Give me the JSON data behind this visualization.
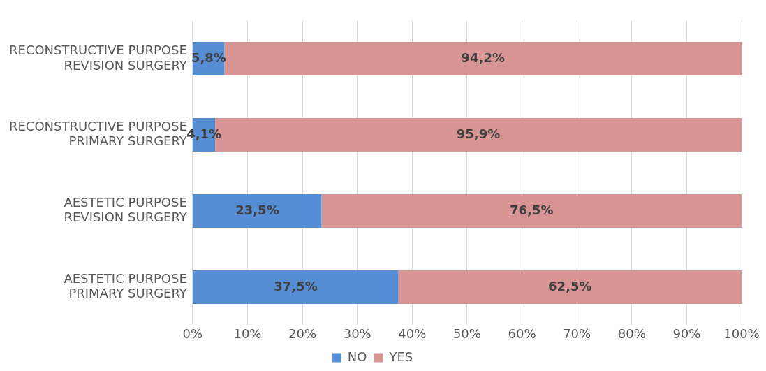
{
  "chart_data": {
    "type": "bar",
    "orientation": "horizontal",
    "stacked": true,
    "categories": [
      "RECONSTRUCTIVE PURPOSE\nREVISION SURGERY",
      "RECONSTRUCTIVE PURPOSE\nPRIMARY SURGERY",
      "AESTETIC PURPOSE\nREVISION SURGERY",
      "AESTETIC PURPOSE\nPRIMARY SURGERY"
    ],
    "series": [
      {
        "name": "NO",
        "color": "#558ed5",
        "values": [
          5.8,
          4.1,
          23.5,
          37.5
        ],
        "value_labels": [
          "5,8%",
          "4,1%",
          "23,5%",
          "37,5%"
        ]
      },
      {
        "name": "YES",
        "color": "#d99594",
        "values": [
          94.2,
          95.9,
          76.5,
          62.5
        ],
        "value_labels": [
          "94,2%",
          "95,9%",
          "76,5%",
          "62,5%"
        ]
      }
    ],
    "xlim": [
      0,
      100
    ],
    "xticks": [
      {
        "value": 0,
        "label": "0%"
      },
      {
        "value": 10,
        "label": "10%"
      },
      {
        "value": 20,
        "label": "20%"
      },
      {
        "value": 30,
        "label": "30%"
      },
      {
        "value": 40,
        "label": "40%"
      },
      {
        "value": 50,
        "label": "50%"
      },
      {
        "value": 60,
        "label": "60%"
      },
      {
        "value": 70,
        "label": "70%"
      },
      {
        "value": 80,
        "label": "80%"
      },
      {
        "value": 90,
        "label": "90%"
      },
      {
        "value": 100,
        "label": "100%"
      }
    ],
    "grid": "x",
    "legend": "bottom"
  }
}
